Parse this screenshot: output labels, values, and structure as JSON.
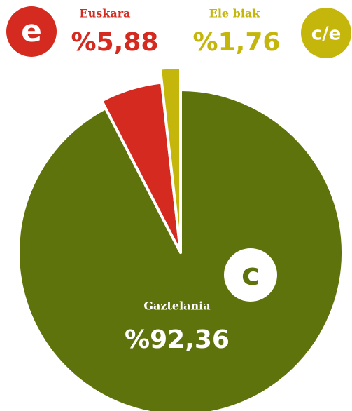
{
  "chart_data": {
    "type": "pie",
    "categories": [
      "Gaztelania",
      "Euskara",
      "Ele biak"
    ],
    "values": [
      92.36,
      5.88,
      1.76
    ],
    "value_labels": [
      "%92,36",
      "%5,88",
      "%1,76"
    ],
    "icon_labels": [
      "c",
      "e",
      "c/e"
    ],
    "colors": [
      "#5e730c",
      "#d42a1f",
      "#c4b60a"
    ]
  }
}
